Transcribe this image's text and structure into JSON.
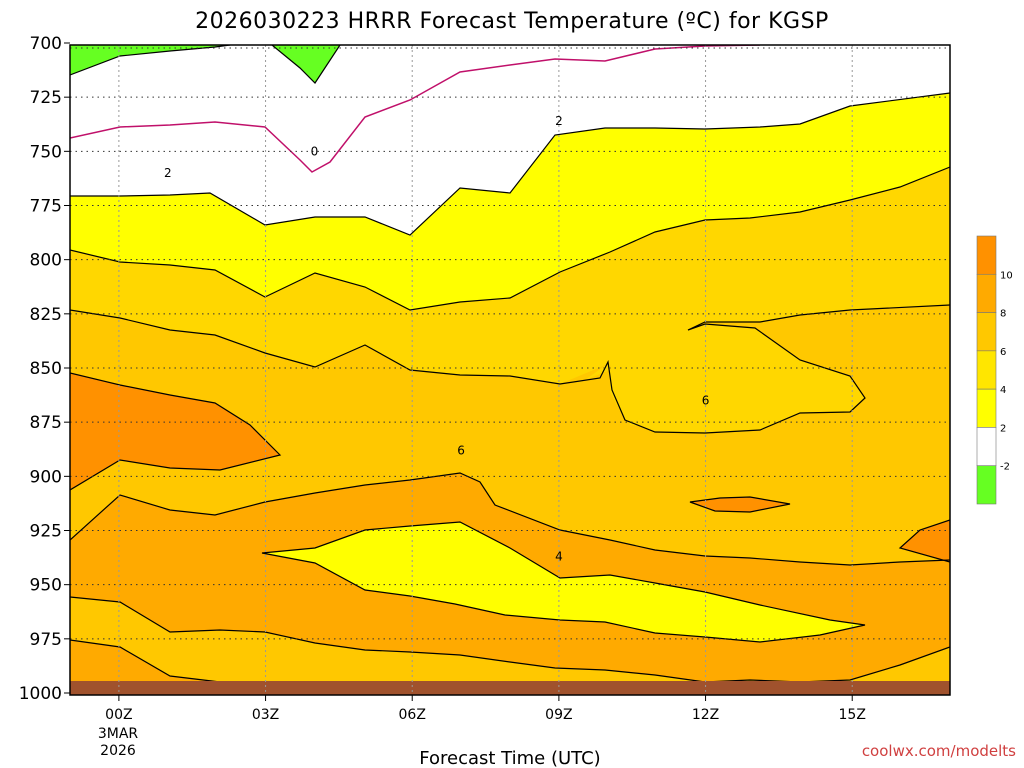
{
  "chart_data": {
    "type": "contour",
    "title": "2026030223 HRRR Forecast Temperature (ºC) for KGSP",
    "xlabel": "Forecast Time (UTC)",
    "ylabel": "",
    "credit": "coolwx.com/modelts",
    "x_ticks": [
      "00Z",
      "03Z",
      "06Z",
      "09Z",
      "12Z",
      "15Z"
    ],
    "x_tick_hours": [
      0,
      3,
      6,
      9,
      12,
      15
    ],
    "date_line1": "3MAR",
    "date_line2": "2026",
    "x_range_hours": [
      -1,
      17
    ],
    "y_ticks": [
      "700",
      "725",
      "750",
      "775",
      "800",
      "825",
      "850",
      "875",
      "900",
      "925",
      "950",
      "975",
      "1000"
    ],
    "y_range_hPa": [
      700,
      1000
    ],
    "y_inverted": true,
    "grid": "dotted",
    "colorbar": {
      "levels": [
        "-2",
        "2",
        "4",
        "6",
        "8",
        "10"
      ],
      "colors": [
        "#66ff22",
        "#ffffff",
        "#ffff00",
        "#ffe600",
        "#ffc800",
        "#ffaa00",
        "#ff9100"
      ]
    },
    "contour_labels": [
      {
        "text": "0",
        "hour": 4.0,
        "hPa": 750
      },
      {
        "text": "2",
        "hour": 1.0,
        "hPa": 760
      },
      {
        "text": "2",
        "hour": 9.0,
        "hPa": 736
      },
      {
        "text": "6",
        "hour": 12.0,
        "hPa": 865
      },
      {
        "text": "6",
        "hour": 7.0,
        "hPa": 888
      },
      {
        "text": "4",
        "hour": 9.0,
        "hPa": 937
      }
    ],
    "ground_color": "#a0522d"
  }
}
